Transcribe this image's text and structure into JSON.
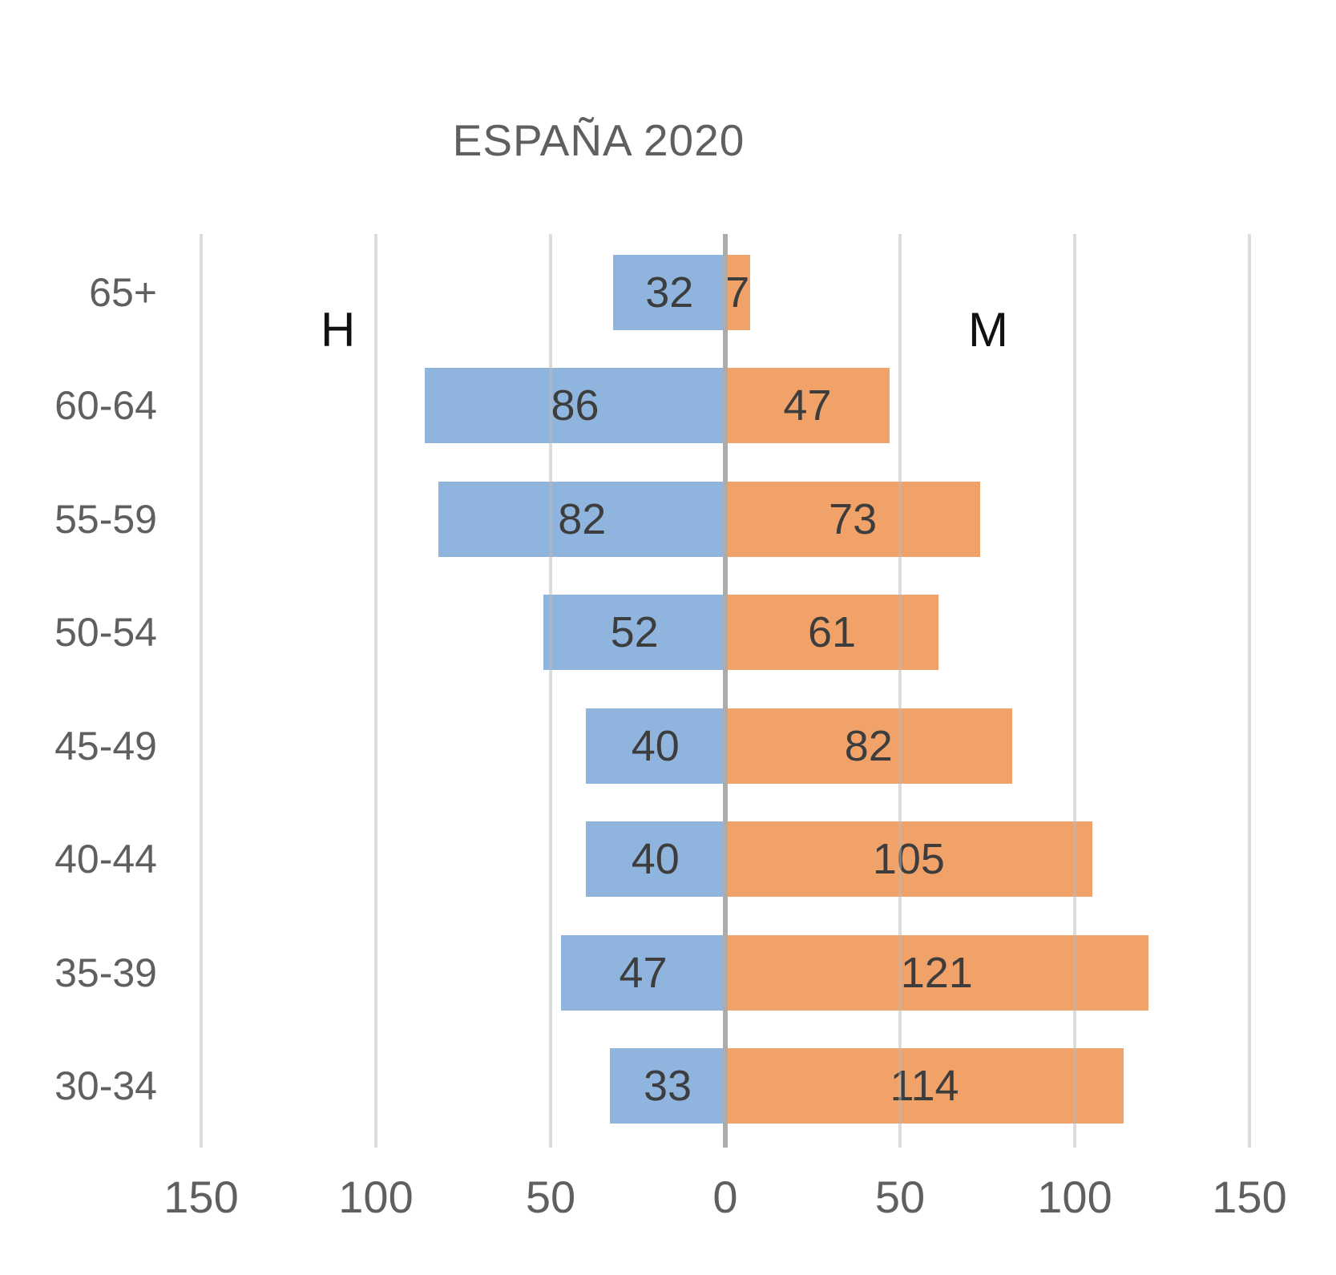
{
  "title": "ESPAÑA 2020",
  "colors": {
    "male_bar": "#8fb4de",
    "female_bar": "#f0a269",
    "grid_line": "#e2e2e2",
    "zero_line": "#acacac",
    "value_label": "#3d3d3d",
    "axis_label": "#5f5f5f",
    "series_label": "#111111",
    "background": "#ffffff"
  },
  "chart_data": {
    "type": "bar",
    "subtype": "population-pyramid",
    "title": "ESPAÑA 2020",
    "categories": [
      "65+",
      "60-64",
      "55-59",
      "50-54",
      "45-49",
      "40-44",
      "35-39",
      "30-34"
    ],
    "series": [
      {
        "name": "H",
        "side": "left",
        "color": "#8fb4de",
        "values": [
          32,
          86,
          82,
          52,
          40,
          40,
          47,
          33
        ]
      },
      {
        "name": "M",
        "side": "right",
        "color": "#f0a269",
        "values": [
          7,
          47,
          73,
          61,
          82,
          105,
          121,
          114
        ]
      }
    ],
    "x_tick_labels": [
      "150",
      "100",
      "50",
      "0",
      "50",
      "100",
      "150"
    ],
    "x_tick_values": [
      -150,
      -100,
      -50,
      0,
      50,
      100,
      150
    ],
    "xlim": [
      -150,
      150
    ],
    "grid": true,
    "value_labels": "inside",
    "legend_position": "none"
  }
}
